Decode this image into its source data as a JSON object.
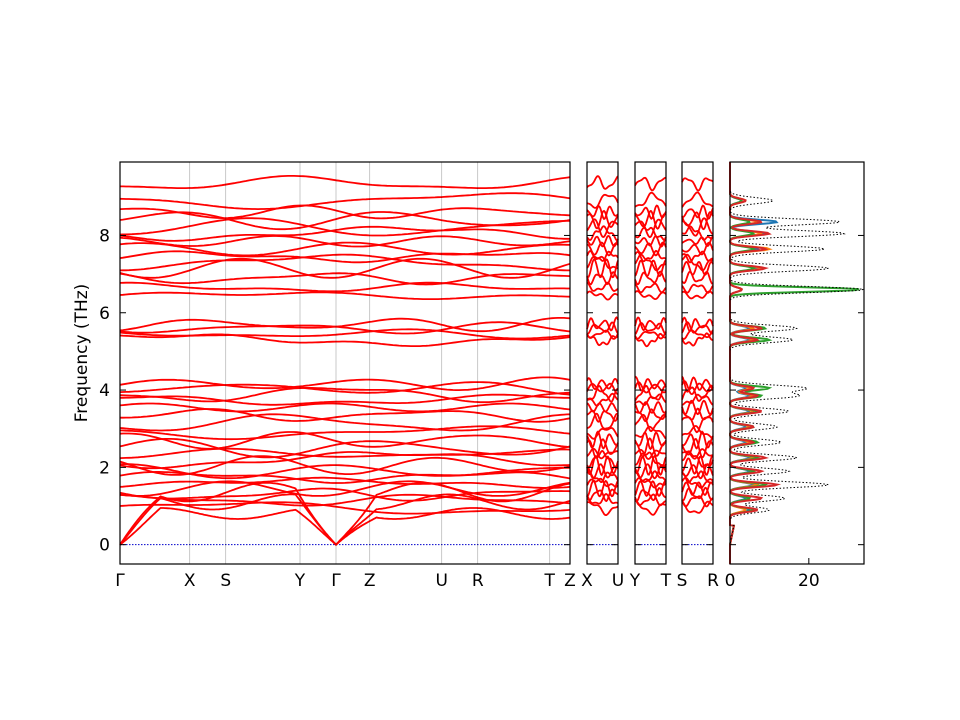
{
  "chart_data": {
    "type": "line",
    "ylabel": "Frequency (THz)",
    "ylim": [
      -0.5,
      9.9
    ],
    "yticks": [
      0,
      2,
      4,
      6,
      8
    ],
    "dos_xticks": [
      0,
      20
    ],
    "dos_xlim": [
      0,
      34
    ],
    "band_color": "#ff0000",
    "zero_line_color": "#0000cc",
    "total_dos_color": "#000000",
    "pdos_colors": [
      "#1f77b4",
      "#ff7f0e",
      "#2ca02c",
      "#d62728"
    ],
    "panels": [
      {
        "labels": [
          "Γ",
          "X",
          "S",
          "Y",
          "Γ",
          "Z",
          "U",
          "R",
          "T",
          "Z"
        ],
        "segments": [
          0.0,
          0.155,
          0.235,
          0.4,
          0.48,
          0.555,
          0.715,
          0.795,
          0.955,
          1.0
        ]
      },
      {
        "labels": [
          "X",
          "U"
        ],
        "segments": [
          0.0,
          1.0
        ]
      },
      {
        "labels": [
          "Y",
          "T"
        ],
        "segments": [
          0.0,
          1.0
        ]
      },
      {
        "labels": [
          "S",
          "R"
        ],
        "segments": [
          0.0,
          1.0
        ]
      }
    ],
    "band_levels": [
      0.95,
      1.15,
      1.3,
      1.45,
      1.6,
      1.75,
      1.9,
      2.05,
      2.2,
      2.35,
      2.5,
      2.7,
      2.9,
      3.15,
      3.35,
      3.55,
      3.75,
      3.9,
      4.05,
      4.15,
      5.3,
      5.45,
      5.6,
      5.7,
      6.45,
      6.65,
      6.9,
      7.15,
      7.3,
      7.45,
      7.65,
      7.85,
      8.05,
      8.2,
      8.4,
      8.6,
      8.9,
      9.35
    ],
    "acoustic_max": [
      0.95,
      1.3,
      1.6
    ],
    "dos_peaks": [
      {
        "freq": 0.9,
        "total": 10,
        "pdos": [
          5,
          4,
          6,
          7
        ]
      },
      {
        "freq": 1.2,
        "total": 14,
        "pdos": [
          4,
          5,
          5,
          8
        ]
      },
      {
        "freq": 1.55,
        "total": 25,
        "pdos": [
          6,
          7,
          9,
          12
        ]
      },
      {
        "freq": 1.9,
        "total": 15,
        "pdos": [
          5,
          6,
          6,
          8
        ]
      },
      {
        "freq": 2.25,
        "total": 17,
        "pdos": [
          5,
          6,
          7,
          9
        ]
      },
      {
        "freq": 2.65,
        "total": 13,
        "pdos": [
          4,
          5,
          7,
          6
        ]
      },
      {
        "freq": 3.05,
        "total": 12,
        "pdos": [
          4,
          5,
          6,
          6
        ]
      },
      {
        "freq": 3.45,
        "total": 15,
        "pdos": [
          5,
          6,
          7,
          8
        ]
      },
      {
        "freq": 3.85,
        "total": 17,
        "pdos": [
          5,
          6,
          8,
          7
        ]
      },
      {
        "freq": 4.05,
        "total": 19,
        "pdos": [
          4,
          5,
          10,
          6
        ]
      },
      {
        "freq": 5.3,
        "total": 16,
        "pdos": [
          5,
          6,
          10,
          7
        ]
      },
      {
        "freq": 5.6,
        "total": 17,
        "pdos": [
          5,
          6,
          9,
          8
        ]
      },
      {
        "freq": 6.6,
        "total": 34,
        "pdos": [
          3,
          3,
          33,
          3
        ]
      },
      {
        "freq": 7.15,
        "total": 25,
        "pdos": [
          7,
          8,
          6,
          9
        ]
      },
      {
        "freq": 7.65,
        "total": 24,
        "pdos": [
          7,
          10,
          6,
          9
        ]
      },
      {
        "freq": 8.05,
        "total": 29,
        "pdos": [
          9,
          8,
          6,
          10
        ]
      },
      {
        "freq": 8.35,
        "total": 28,
        "pdos": [
          12,
          7,
          5,
          8
        ]
      },
      {
        "freq": 8.9,
        "total": 11,
        "pdos": [
          3,
          4,
          3,
          4
        ]
      }
    ]
  }
}
